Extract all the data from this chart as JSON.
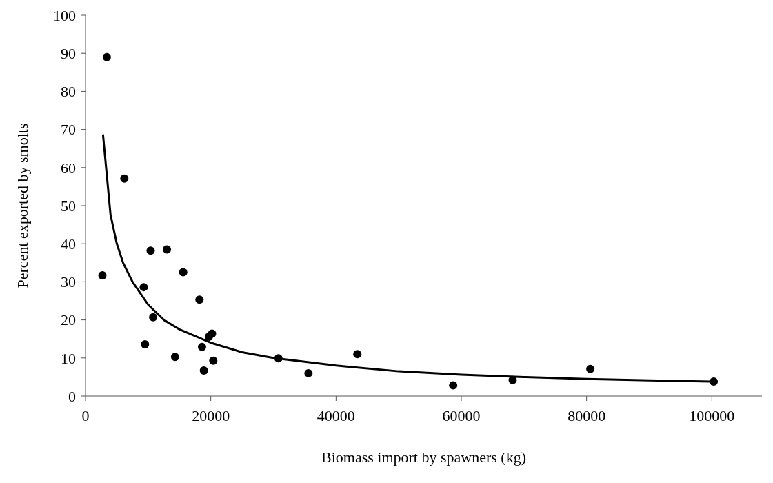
{
  "chart_data": {
    "type": "scatter",
    "xlabel": "Biomass import by spawners (kg)",
    "ylabel": "Percent exported by smolts",
    "xlim": [
      0,
      108000
    ],
    "xticks": [
      0,
      20000,
      40000,
      60000,
      80000,
      100000
    ],
    "ylim": [
      0,
      100
    ],
    "yticks": [
      0,
      10,
      20,
      30,
      40,
      50,
      60,
      70,
      80,
      90,
      100
    ],
    "grid": false,
    "marker": "circle",
    "series": [
      {
        "color": "#000000",
        "x": [
          3400,
          6200,
          10400,
          13000,
          2700,
          15600,
          9300,
          18200,
          10800,
          20200,
          19700,
          9500,
          18600,
          14300,
          20400,
          18900,
          30800,
          35600,
          43400,
          58700,
          68200,
          80600,
          100300
        ],
        "values": [
          89,
          57.1,
          38.2,
          38.5,
          31.7,
          32.5,
          28.6,
          25.3,
          20.7,
          16.4,
          15.6,
          13.6,
          12.9,
          10.3,
          9.3,
          6.7,
          9.9,
          6.0,
          11.0,
          2.8,
          4.2,
          7.1,
          3.8
        ]
      },
      {
        "type": "line",
        "color": "#000000",
        "line_style": "solid",
        "marker": "none",
        "x": [
          2800,
          4000,
          5000,
          6000,
          7500,
          10000,
          12500,
          15000,
          20000,
          25000,
          30000,
          40000,
          50000,
          60000,
          70000,
          80000,
          90000,
          100000
        ],
        "values": [
          68.5,
          47.5,
          40,
          35,
          30,
          24,
          20,
          17.5,
          14,
          11.5,
          10,
          8,
          6.5,
          5.6,
          5,
          4.5,
          4.1,
          3.8
        ]
      }
    ]
  }
}
